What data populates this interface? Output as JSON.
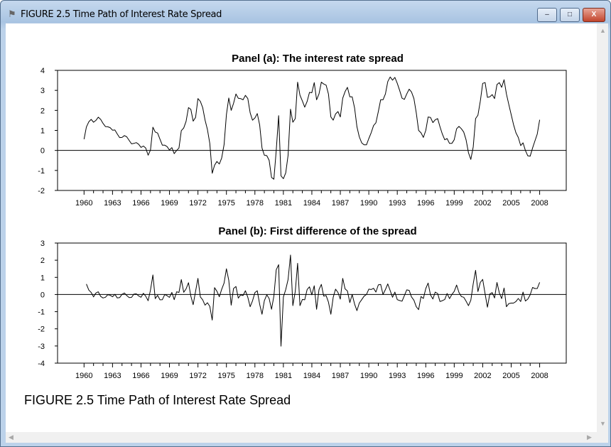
{
  "window": {
    "title": "FIGURE 2.5 Time Path of Interest Rate Spread",
    "minimize_label": "–",
    "maximize_label": "□",
    "close_label": "X",
    "app_icon": "figure-icon"
  },
  "caption": "FIGURE 2.5 Time Path of Interest Rate Spread",
  "chart_data": [
    {
      "type": "line",
      "title": "Panel (a): The interest rate spread",
      "xlabel": "",
      "ylabel": "",
      "frequency": "quarterly",
      "start": 1960.0,
      "x_ticks": [
        "1960",
        "1963",
        "1966",
        "1969",
        "1972",
        "1975",
        "1978",
        "1981",
        "1984",
        "1987",
        "1990",
        "1993",
        "1996",
        "1999",
        "2002",
        "2005",
        "2008"
      ],
      "y_ticks": [
        "4",
        "3",
        "2",
        "1",
        "0",
        "-1",
        "-2"
      ],
      "ylim": [
        -2,
        4
      ],
      "xlim": [
        1960,
        2008
      ],
      "zero_line": true,
      "grid": false,
      "values": [
        0.56,
        1.17,
        1.43,
        1.55,
        1.41,
        1.5,
        1.66,
        1.55,
        1.35,
        1.19,
        1.18,
        1.14,
        1.01,
        1.02,
        0.82,
        0.64,
        0.65,
        0.74,
        0.68,
        0.5,
        0.33,
        0.35,
        0.39,
        0.31,
        0.15,
        0.22,
        0.12,
        -0.24,
        0.02,
        1.16,
        0.92,
        0.87,
        0.56,
        0.26,
        0.26,
        0.19,
        0.02,
        0.14,
        -0.16,
        0,
        0.12,
        0.99,
        1.12,
        1.45,
        2.14,
        2.05,
        1.46,
        1.65,
        2.59,
        2.45,
        2.14,
        1.52,
        1.04,
        0.35,
        -1.14,
        -0.74,
        -0.55,
        -0.68,
        -0.38,
        0.29,
        1.79,
        2.62,
        2.0,
        2.35,
        2.82,
        2.61,
        2.59,
        2.53,
        2.75,
        2.59,
        1.88,
        1.51,
        1.62,
        1.84,
        1.27,
        0.12,
        -0.24,
        -0.26,
        -0.49,
        -1.35,
        -1.44,
        0,
        1.74,
        -1.27,
        -1.41,
        -1.12,
        -0.24,
        2.06,
        1.41,
        1.59,
        3.41,
        2.76,
        2.47,
        2.16,
        2.45,
        2.9,
        2.88,
        3.39,
        2.53,
        2.82,
        3.41,
        3.32,
        3.26,
        2.82,
        1.67,
        1.51,
        1.82,
        1.94,
        1.67,
        2.61,
        2.94,
        3.15,
        2.68,
        2.68,
        2.12,
        1.18,
        0.68,
        0.38,
        0.28,
        0.28,
        0.59,
        0.88,
        1.24,
        1.38,
        1.94,
        2.53,
        2.53,
        2.82,
        3.44,
        3.67,
        3.51,
        3.65,
        3.35,
        3.0,
        2.61,
        2.55,
        2.82,
        3.06,
        2.92,
        2.59,
        1.88,
        1.0,
        0.88,
        0.65,
        1.0,
        1.67,
        1.65,
        1.39,
        1.53,
        1.59,
        1.18,
        0.82,
        0.53,
        0.59,
        0.35,
        0.35,
        0.53,
        1.08,
        1.2,
        1.08,
        0.92,
        0.53,
        -0.12,
        -0.45,
        0.18,
        1.59,
        1.76,
        2.47,
        3.35,
        3.39,
        2.65,
        2.68,
        2.79,
        2.59,
        3.29,
        3.39,
        3.15,
        3.53,
        2.82,
        2.29,
        1.79,
        1.29,
        0.88,
        0.65,
        0.24,
        0.38,
        0,
        -0.27,
        -0.29,
        0.12,
        0.47,
        0.82,
        1.53
      ]
    },
    {
      "type": "line",
      "title": "Panel (b): First difference of the spread",
      "xlabel": "",
      "ylabel": "",
      "frequency": "quarterly",
      "start": 1960.25,
      "derived_from": "first difference of panel (a) values",
      "x_ticks": [
        "1960",
        "1963",
        "1966",
        "1969",
        "1972",
        "1975",
        "1978",
        "1981",
        "1984",
        "1987",
        "1990",
        "1993",
        "1996",
        "1999",
        "2002",
        "2005",
        "2008"
      ],
      "y_ticks": [
        "3",
        "2",
        "1",
        "0",
        "-1",
        "-2",
        "-3",
        "-4"
      ],
      "ylim": [
        -4,
        3
      ],
      "xlim": [
        1960,
        2008
      ],
      "zero_line": true,
      "grid": false
    }
  ],
  "colors": {
    "line": "#000000",
    "background": "#ffffff",
    "frame": "#bcd2ea"
  }
}
